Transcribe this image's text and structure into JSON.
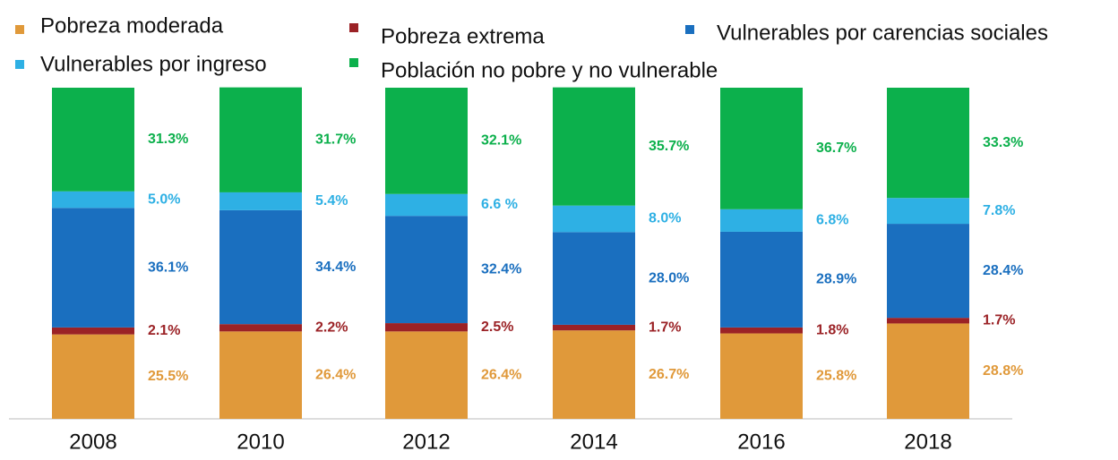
{
  "chart_data": {
    "type": "stacked_bar",
    "categories": [
      "2008",
      "2010",
      "2012",
      "2014",
      "2016",
      "2018"
    ],
    "ylim": [
      0,
      100
    ],
    "series": [
      {
        "name": "Pobreza moderada",
        "color": "#e0993a",
        "values": [
          25.5,
          26.4,
          26.4,
          26.7,
          25.8,
          28.8
        ],
        "value_labels": [
          "25.5%",
          "26.4%",
          "26.4%",
          "26.7%",
          "25.8%",
          "28.8%"
        ]
      },
      {
        "name": "Pobreza extrema",
        "color": "#9b2226",
        "values": [
          2.1,
          2.2,
          2.5,
          1.7,
          1.8,
          1.7
        ],
        "value_labels": [
          "2.1%",
          "2.2%",
          "2.5%",
          "1.7%",
          "1.8%",
          "1.7%"
        ]
      },
      {
        "name": "Vulnerables por carencias sociales",
        "color": "#1a6fbf",
        "values": [
          36.1,
          34.4,
          32.4,
          28.0,
          28.9,
          28.4
        ],
        "value_labels": [
          "36.1%",
          "34.4%",
          "32.4%",
          "28.0%",
          "28.9%",
          "28.4%"
        ]
      },
      {
        "name": "Vulnerables por ingreso",
        "color": "#2eb0e4",
        "values": [
          5.0,
          5.4,
          6.6,
          8.0,
          6.8,
          7.8
        ],
        "value_labels": [
          "5.0%",
          "5.4%",
          "6.6 %",
          "8.0%",
          "6.8%",
          "7.8%"
        ]
      },
      {
        "name": "Población no pobre y no vulnerable",
        "color": "#0cb04c",
        "values": [
          31.3,
          31.7,
          32.1,
          35.7,
          36.7,
          33.3
        ],
        "value_labels": [
          "31.3%",
          "31.7%",
          "32.1%",
          "35.7%",
          "36.7%",
          "33.3%"
        ]
      }
    ]
  }
}
